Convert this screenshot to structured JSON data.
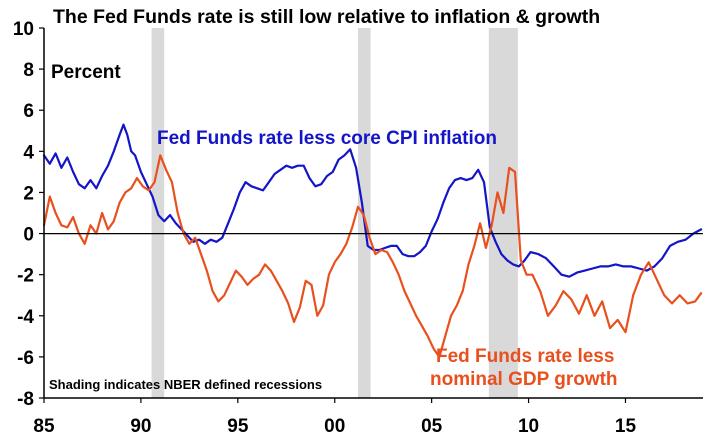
{
  "chart_data": {
    "type": "line",
    "title": "The Fed Funds rate is still low relative to inflation & growth",
    "ylabel": "Percent",
    "note": "Shading indicates NBER defined recessions",
    "xlim": [
      1985,
      2019
    ],
    "ylim": [
      -8,
      10
    ],
    "x_ticks": [
      1985,
      1990,
      1995,
      2000,
      2005,
      2010,
      2015
    ],
    "x_tick_labels": [
      "85",
      "90",
      "95",
      "00",
      "05",
      "10",
      "15"
    ],
    "y_ticks": [
      -8,
      -6,
      -4,
      -2,
      0,
      2,
      4,
      6,
      8,
      10
    ],
    "y_tick_labels": [
      "-8",
      "-6",
      "-4",
      "-2",
      "0",
      "2",
      "4",
      "6",
      "8",
      "10"
    ],
    "recessions": [
      [
        1990.55,
        1991.2
      ],
      [
        2001.2,
        2001.85
      ],
      [
        2007.95,
        2009.45
      ]
    ],
    "grid": false,
    "series": [
      {
        "name": "Fed Funds rate less core CPI inflation",
        "label_lines": [
          "Fed Funds rate less core CPI inflation"
        ],
        "color": "#1414c8",
        "x": [
          1985.0,
          1985.3,
          1985.6,
          1985.9,
          1986.2,
          1986.5,
          1986.8,
          1987.1,
          1987.4,
          1987.7,
          1988.0,
          1988.3,
          1988.6,
          1988.9,
          1989.1,
          1989.3,
          1989.5,
          1989.7,
          1990.0,
          1990.3,
          1990.6,
          1990.9,
          1991.2,
          1991.5,
          1991.8,
          1992.1,
          1992.4,
          1992.7,
          1993.0,
          1993.3,
          1993.6,
          1993.9,
          1994.2,
          1994.5,
          1994.8,
          1995.1,
          1995.4,
          1995.7,
          1996.0,
          1996.3,
          1996.6,
          1996.9,
          1997.2,
          1997.5,
          1997.8,
          1998.1,
          1998.4,
          1998.7,
          1999.0,
          1999.3,
          1999.6,
          1999.9,
          2000.2,
          2000.5,
          2000.8,
          2001.1,
          2001.4,
          2001.7,
          2002.0,
          2002.3,
          2002.6,
          2002.9,
          2003.2,
          2003.5,
          2003.8,
          2004.1,
          2004.4,
          2004.7,
          2005.0,
          2005.3,
          2005.6,
          2005.9,
          2006.2,
          2006.5,
          2006.8,
          2007.1,
          2007.4,
          2007.7,
          2008.0,
          2008.3,
          2008.6,
          2008.9,
          2009.2,
          2009.5,
          2009.8,
          2010.1,
          2010.5,
          2010.9,
          2011.3,
          2011.7,
          2012.1,
          2012.5,
          2012.9,
          2013.3,
          2013.7,
          2014.1,
          2014.5,
          2014.9,
          2015.3,
          2015.7,
          2016.1,
          2016.5,
          2016.9,
          2017.3,
          2017.7,
          2018.1,
          2018.5,
          2018.9
        ],
        "y": [
          3.8,
          3.4,
          3.9,
          3.2,
          3.7,
          3.0,
          2.4,
          2.2,
          2.6,
          2.2,
          2.8,
          3.3,
          4.0,
          4.8,
          5.3,
          4.8,
          4.0,
          3.8,
          3.0,
          2.4,
          1.8,
          0.9,
          0.6,
          0.9,
          0.5,
          0.2,
          -0.1,
          -0.4,
          -0.3,
          -0.5,
          -0.3,
          -0.4,
          -0.2,
          0.5,
          1.2,
          2.0,
          2.5,
          2.3,
          2.2,
          2.1,
          2.5,
          2.9,
          3.1,
          3.3,
          3.2,
          3.3,
          3.3,
          2.7,
          2.3,
          2.4,
          2.8,
          3.0,
          3.6,
          3.8,
          4.1,
          3.2,
          1.5,
          -0.6,
          -0.8,
          -0.8,
          -0.7,
          -0.6,
          -0.6,
          -1.0,
          -1.1,
          -1.1,
          -0.9,
          -0.6,
          0.1,
          0.7,
          1.5,
          2.2,
          2.6,
          2.7,
          2.6,
          2.7,
          3.1,
          2.5,
          0.3,
          -0.4,
          -1.0,
          -1.3,
          -1.5,
          -1.6,
          -1.3,
          -0.9,
          -1.0,
          -1.2,
          -1.6,
          -2.0,
          -2.1,
          -1.9,
          -1.8,
          -1.7,
          -1.6,
          -1.6,
          -1.5,
          -1.6,
          -1.6,
          -1.7,
          -1.8,
          -1.6,
          -1.2,
          -0.6,
          -0.4,
          -0.3,
          0.0,
          0.2
        ]
      },
      {
        "name": "Fed Funds rate less nominal GDP growth",
        "label_lines": [
          "Fed Funds rate less",
          "nominal GDP growth"
        ],
        "color": "#e8501e",
        "x": [
          1985.0,
          1985.3,
          1985.6,
          1985.9,
          1986.2,
          1986.5,
          1986.8,
          1987.1,
          1987.4,
          1987.7,
          1988.0,
          1988.3,
          1988.6,
          1988.9,
          1989.2,
          1989.5,
          1989.8,
          1990.1,
          1990.4,
          1990.7,
          1991.0,
          1991.3,
          1991.6,
          1991.9,
          1992.2,
          1992.5,
          1992.8,
          1993.1,
          1993.4,
          1993.7,
          1994.0,
          1994.3,
          1994.6,
          1994.9,
          1995.2,
          1995.5,
          1995.8,
          1996.1,
          1996.4,
          1996.7,
          1997.0,
          1997.3,
          1997.6,
          1997.9,
          1998.2,
          1998.5,
          1998.8,
          1999.1,
          1999.4,
          1999.7,
          2000.0,
          2000.3,
          2000.6,
          2000.9,
          2001.2,
          2001.5,
          2001.8,
          2002.1,
          2002.4,
          2002.7,
          2003.0,
          2003.3,
          2003.6,
          2003.9,
          2004.2,
          2004.5,
          2004.8,
          2005.1,
          2005.4,
          2005.7,
          2006.0,
          2006.3,
          2006.6,
          2006.9,
          2007.2,
          2007.5,
          2007.8,
          2008.1,
          2008.4,
          2008.7,
          2009.0,
          2009.3,
          2009.6,
          2009.9,
          2010.2,
          2010.6,
          2011.0,
          2011.4,
          2011.8,
          2012.2,
          2012.6,
          2013.0,
          2013.4,
          2013.8,
          2014.2,
          2014.6,
          2015.0,
          2015.4,
          2015.8,
          2016.2,
          2016.6,
          2017.0,
          2017.4,
          2017.8,
          2018.2,
          2018.6,
          2018.9
        ],
        "y": [
          0.4,
          1.8,
          1.0,
          0.4,
          0.3,
          0.8,
          0.0,
          -0.5,
          0.4,
          0.0,
          1.0,
          0.2,
          0.6,
          1.5,
          2.0,
          2.2,
          2.7,
          2.3,
          2.1,
          2.5,
          3.8,
          3.1,
          2.5,
          1.0,
          0.0,
          -0.5,
          -0.2,
          -1.0,
          -1.8,
          -2.8,
          -3.3,
          -3.0,
          -2.4,
          -1.8,
          -2.1,
          -2.5,
          -2.2,
          -2.0,
          -1.5,
          -1.8,
          -2.3,
          -2.8,
          -3.4,
          -4.3,
          -3.6,
          -2.3,
          -2.5,
          -4.0,
          -3.5,
          -2.0,
          -1.4,
          -1.0,
          -0.5,
          0.3,
          1.3,
          0.9,
          -0.2,
          -1.0,
          -0.8,
          -0.9,
          -1.4,
          -2.0,
          -2.8,
          -3.4,
          -4.0,
          -4.5,
          -5.0,
          -5.6,
          -6.0,
          -5.0,
          -4.0,
          -3.5,
          -2.8,
          -1.5,
          -0.6,
          0.5,
          -0.7,
          0.4,
          2.0,
          1.0,
          3.2,
          3.0,
          -1.3,
          -2.0,
          -2.0,
          -2.8,
          -4.0,
          -3.5,
          -2.8,
          -3.2,
          -3.9,
          -3.0,
          -4.0,
          -3.3,
          -4.6,
          -4.2,
          -4.8,
          -3.0,
          -2.0,
          -1.4,
          -2.2,
          -3.0,
          -3.4,
          -3.0,
          -3.4,
          -3.3,
          -2.9
        ]
      }
    ]
  }
}
